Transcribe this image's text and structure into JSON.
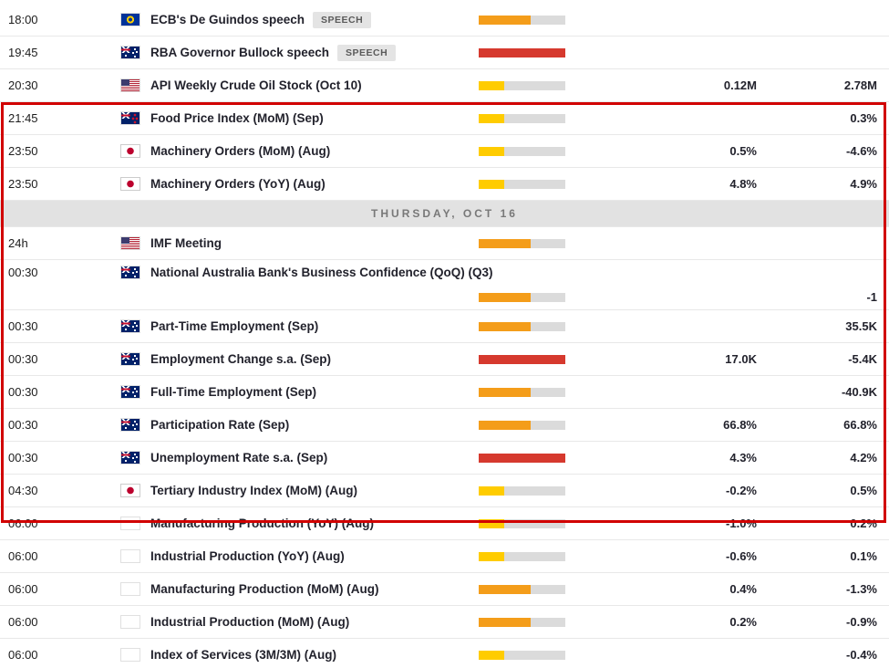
{
  "colors": {
    "impact_low": "#FFCC00",
    "impact_medium": "#F49D1A",
    "impact_high": "#D6392E",
    "bar_bg": "#DBDBDB",
    "highlight_border": "#D10000",
    "day_header_bg": "#E2E2E2"
  },
  "rows": [
    {
      "type": "event",
      "time": "18:00",
      "country": "eu",
      "event": "ECB's De Guindos speech",
      "badge": "SPEECH",
      "impact": "medium",
      "forecast": "",
      "previous": ""
    },
    {
      "type": "event",
      "time": "19:45",
      "country": "au",
      "event": "RBA Governor Bullock speech",
      "badge": "SPEECH",
      "impact": "high",
      "forecast": "",
      "previous": ""
    },
    {
      "type": "event",
      "time": "20:30",
      "country": "us",
      "event": "API Weekly Crude Oil Stock (Oct 10)",
      "impact": "low",
      "forecast": "0.12M",
      "previous": "2.78M"
    },
    {
      "type": "event",
      "time": "21:45",
      "country": "nz",
      "event": "Food Price Index (MoM) (Sep)",
      "impact": "low",
      "forecast": "",
      "previous": "0.3%"
    },
    {
      "type": "event",
      "time": "23:50",
      "country": "jp",
      "event": "Machinery Orders (MoM) (Aug)",
      "impact": "low",
      "forecast": "0.5%",
      "previous": "-4.6%"
    },
    {
      "type": "event",
      "time": "23:50",
      "country": "jp",
      "event": "Machinery Orders (YoY) (Aug)",
      "impact": "low",
      "forecast": "4.8%",
      "previous": "4.9%"
    },
    {
      "type": "day",
      "label": "THURSDAY, OCT 16"
    },
    {
      "type": "event",
      "time": "24h",
      "country": "us",
      "event": "IMF Meeting",
      "impact": "medium",
      "forecast": "",
      "previous": ""
    },
    {
      "type": "event",
      "time": "00:30",
      "country": "au",
      "event": "National Australia Bank's Business Confidence (QoQ) (Q3)",
      "impact": "medium",
      "forecast": "",
      "previous": "-1",
      "tall": true
    },
    {
      "type": "event",
      "time": "00:30",
      "country": "au",
      "event": "Part-Time Employment (Sep)",
      "impact": "medium",
      "forecast": "",
      "previous": "35.5K"
    },
    {
      "type": "event",
      "time": "00:30",
      "country": "au",
      "event": "Employment Change s.a. (Sep)",
      "impact": "high",
      "forecast": "17.0K",
      "previous": "-5.4K"
    },
    {
      "type": "event",
      "time": "00:30",
      "country": "au",
      "event": "Full-Time Employment (Sep)",
      "impact": "medium",
      "forecast": "",
      "previous": "-40.9K"
    },
    {
      "type": "event",
      "time": "00:30",
      "country": "au",
      "event": "Participation Rate (Sep)",
      "impact": "medium",
      "forecast": "66.8%",
      "previous": "66.8%"
    },
    {
      "type": "event",
      "time": "00:30",
      "country": "au",
      "event": "Unemployment Rate s.a. (Sep)",
      "impact": "high",
      "forecast": "4.3%",
      "previous": "4.2%"
    },
    {
      "type": "event",
      "time": "04:30",
      "country": "jp",
      "event": "Tertiary Industry Index (MoM) (Aug)",
      "impact": "low",
      "forecast": "-0.2%",
      "previous": "0.5%"
    },
    {
      "type": "event",
      "time": "06:00",
      "country": "gb",
      "event": "Manufacturing Production (YoY) (Aug)",
      "impact": "low",
      "forecast": "-1.0%",
      "previous": "0.2%"
    },
    {
      "type": "event",
      "time": "06:00",
      "country": "gb",
      "event": "Industrial Production (YoY) (Aug)",
      "impact": "low",
      "forecast": "-0.6%",
      "previous": "0.1%"
    },
    {
      "type": "event",
      "time": "06:00",
      "country": "gb",
      "event": "Manufacturing Production (MoM) (Aug)",
      "impact": "medium",
      "forecast": "0.4%",
      "previous": "-1.3%"
    },
    {
      "type": "event",
      "time": "06:00",
      "country": "gb",
      "event": "Industrial Production (MoM) (Aug)",
      "impact": "medium",
      "forecast": "0.2%",
      "previous": "-0.9%"
    },
    {
      "type": "event",
      "time": "06:00",
      "country": "gb",
      "event": "Index of Services (3M/3M) (Aug)",
      "impact": "low",
      "forecast": "",
      "previous": "-0.4%"
    }
  ]
}
